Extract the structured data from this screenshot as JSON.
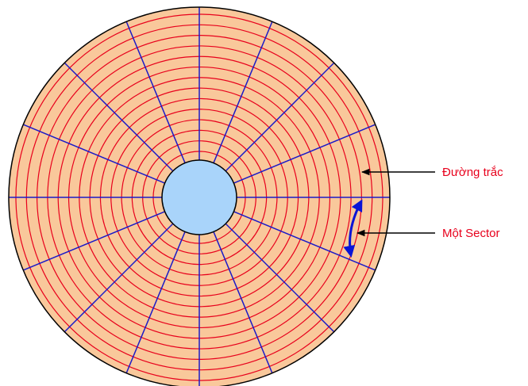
{
  "disk": {
    "track_count": 14,
    "sector_count": 16,
    "colors": {
      "platter_fill": "#F9C89B",
      "platter_outline": "#000000",
      "track_line": "#E8001C",
      "sector_line": "#1A1AC8",
      "hub_fill": "#A9D4FA",
      "hub_outline": "#000000",
      "arc_arrow": "#0A14D6",
      "pointer_arrow": "#000000"
    }
  },
  "labels": {
    "track": {
      "text": "Đường trắc",
      "color": "#E8001C"
    },
    "sector": {
      "text": "Một Sector",
      "color": "#E8001C"
    }
  }
}
